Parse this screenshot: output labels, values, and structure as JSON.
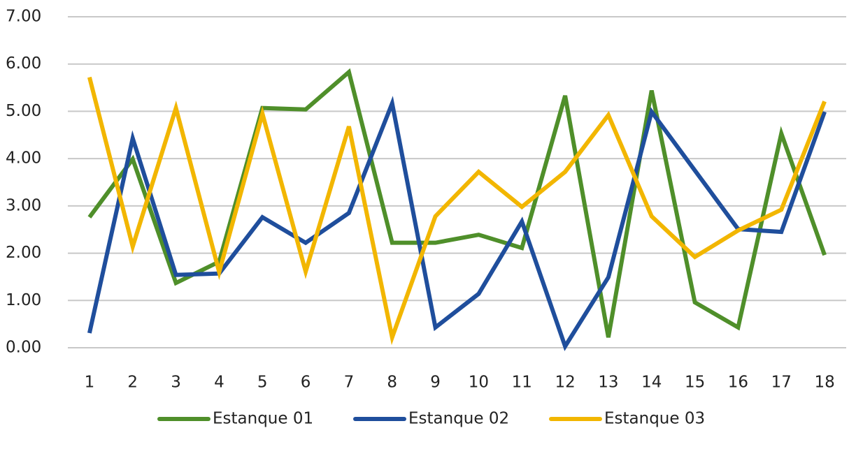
{
  "chart_data": {
    "type": "line",
    "categories": [
      "1",
      "2",
      "3",
      "4",
      "5",
      "6",
      "7",
      "8",
      "9",
      "10",
      "11",
      "12",
      "13",
      "14",
      "15",
      "16",
      "17",
      "18"
    ],
    "series": [
      {
        "name": "Estanque 01",
        "color": "#4f8f2a",
        "values": [
          2.76,
          3.99,
          1.37,
          1.82,
          5.07,
          5.04,
          5.83,
          2.22,
          2.22,
          2.39,
          2.11,
          5.33,
          0.22,
          5.44,
          0.96,
          0.43,
          4.53,
          1.96
        ]
      },
      {
        "name": "Estanque 02",
        "color": "#1f4e9c",
        "values": [
          0.31,
          4.43,
          1.54,
          1.57,
          2.76,
          2.22,
          2.85,
          5.17,
          0.43,
          1.14,
          2.67,
          0.03,
          1.49,
          4.99,
          3.75,
          2.51,
          2.45,
          4.99
        ]
      },
      {
        "name": "Estanque 03",
        "color": "#f2b600",
        "values": [
          5.72,
          2.14,
          5.07,
          1.6,
          4.95,
          1.61,
          4.68,
          0.22,
          2.78,
          3.72,
          2.98,
          3.72,
          4.92,
          2.78,
          1.92,
          2.48,
          2.92,
          5.21
        ]
      }
    ],
    "ylim": [
      0,
      7
    ],
    "yticks": [
      {
        "value": 0,
        "label": "0.00"
      },
      {
        "value": 1,
        "label": "1.00"
      },
      {
        "value": 2,
        "label": "2.00"
      },
      {
        "value": 3,
        "label": "3.00"
      },
      {
        "value": 4,
        "label": "4.00"
      },
      {
        "value": 5,
        "label": "5.00"
      },
      {
        "value": 6,
        "label": "6.00"
      },
      {
        "value": 7,
        "label": "7.00"
      }
    ],
    "grid": true,
    "legend": "bottom"
  }
}
